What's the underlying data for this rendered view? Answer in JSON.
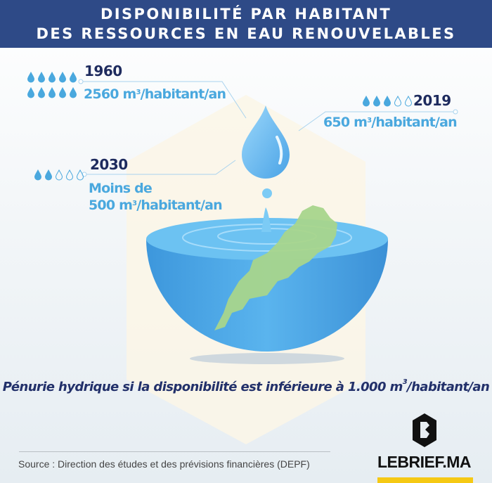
{
  "header": {
    "title_line1": "DISPONIBILITÉ PAR HABITANT",
    "title_line2": "DES RESSOURCES EN EAU RENOUVELABLES"
  },
  "entries": [
    {
      "year": "1960",
      "value": "2560 m",
      "unit_sup": "3",
      "unit_rest": "/habitant/an",
      "drops_filled": 10,
      "drops_total": 10
    },
    {
      "year": "2019",
      "value": "650 m",
      "unit_sup": "3",
      "unit_rest": "/habitant/an",
      "drops_filled": 3,
      "drops_total": 5
    },
    {
      "year": "2030",
      "prefix": "Moins de",
      "value": "500 m",
      "unit_sup": "3",
      "unit_rest": "/habitant/an",
      "drops_filled": 2,
      "drops_total": 5
    }
  ],
  "note": {
    "text": "Pénurie hydrique si la disponibilité est inférieure à 1.000 m",
    "sup": "3",
    "rest": "/habitant/an"
  },
  "source": "Source : Direction des études et des prévisions financières (DEPF)",
  "logo": {
    "text": "LEBRIEF.MA"
  },
  "colors": {
    "header": "#2e4a87",
    "year": "#1e2b5e",
    "value": "#4aa8de",
    "water": "#4fa8e6",
    "map": "#a8d58c",
    "logo_bar": "#f5c914"
  }
}
